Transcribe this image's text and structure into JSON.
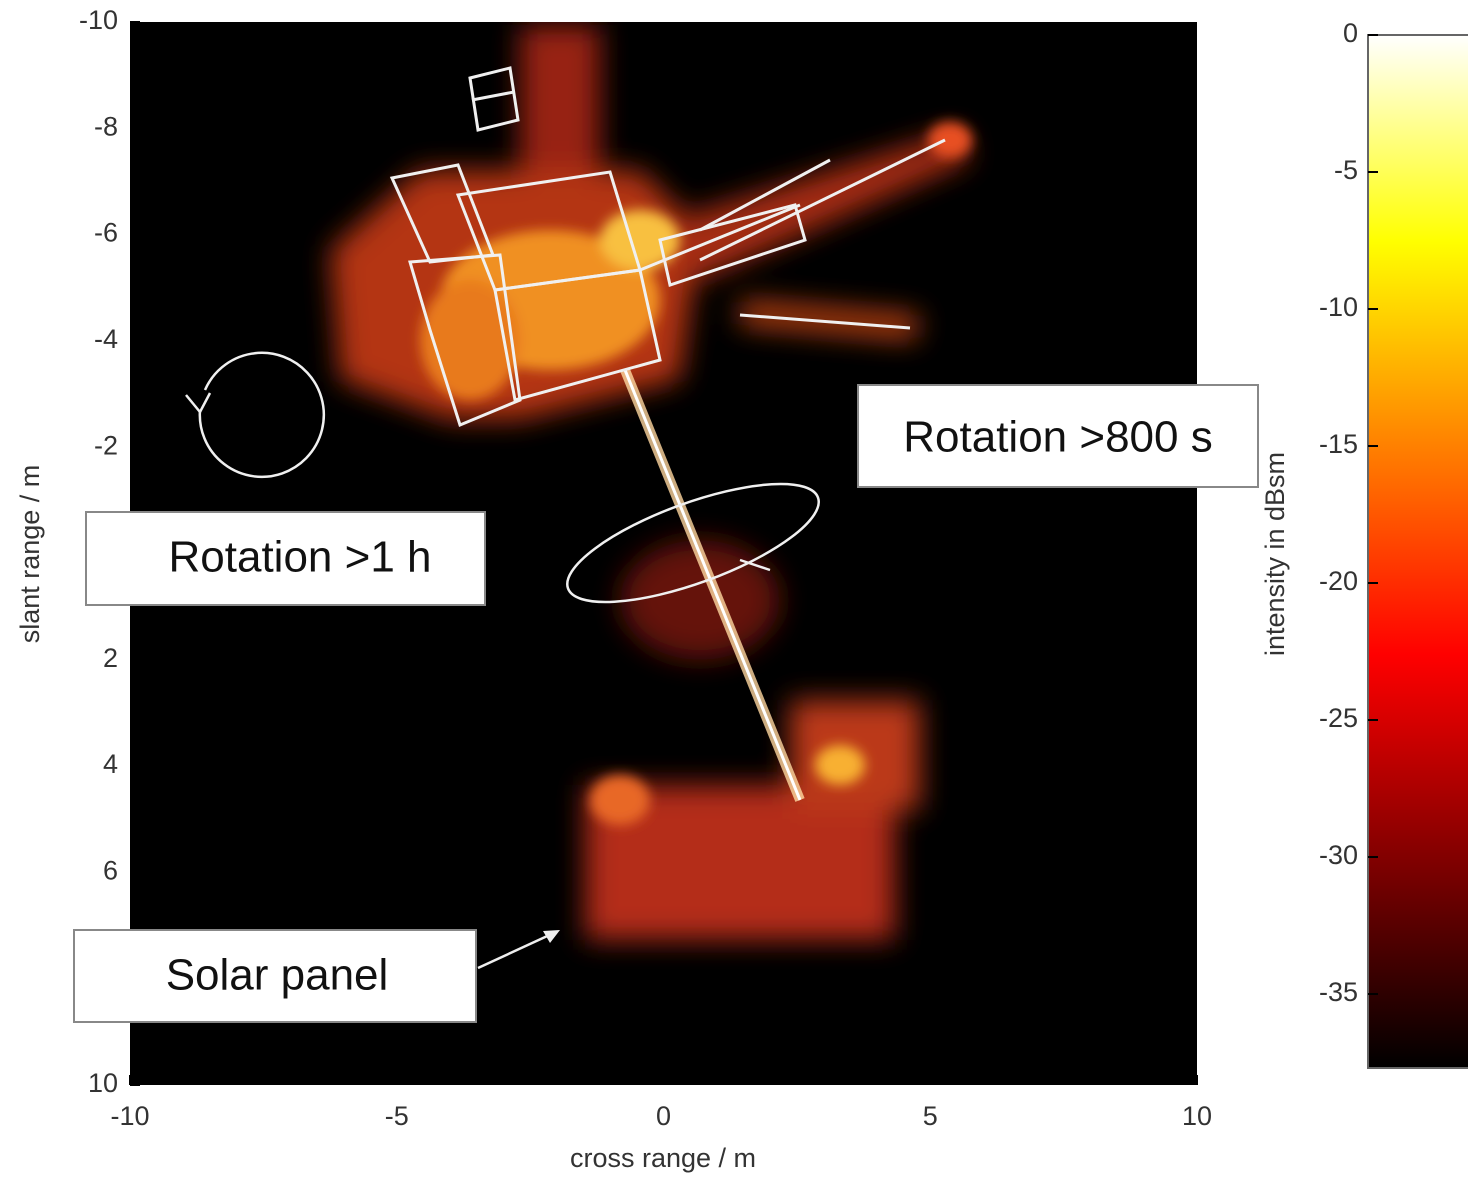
{
  "chart_data": {
    "type": "heatmap",
    "xlabel": "cross range / m",
    "ylabel": "slant range / m",
    "xlim": [
      -10,
      10
    ],
    "ylim": [
      -10,
      10
    ],
    "y_inverted": true,
    "xticks": [
      -10,
      -5,
      0,
      5,
      10
    ],
    "yticks": [
      -10,
      -8,
      -6,
      -4,
      -2,
      2,
      4,
      6,
      10
    ],
    "background": "#000000",
    "colorbar": {
      "label": "intensity in dBsm",
      "lim": [
        -37.7,
        0
      ],
      "ticks": [
        0,
        -5,
        -10,
        -15,
        -20,
        -25,
        -30,
        -35
      ],
      "colormap": "hot"
    },
    "annotations": [
      "Rotation >800 s",
      "Rotation >1 h",
      "Solar panel"
    ]
  }
}
